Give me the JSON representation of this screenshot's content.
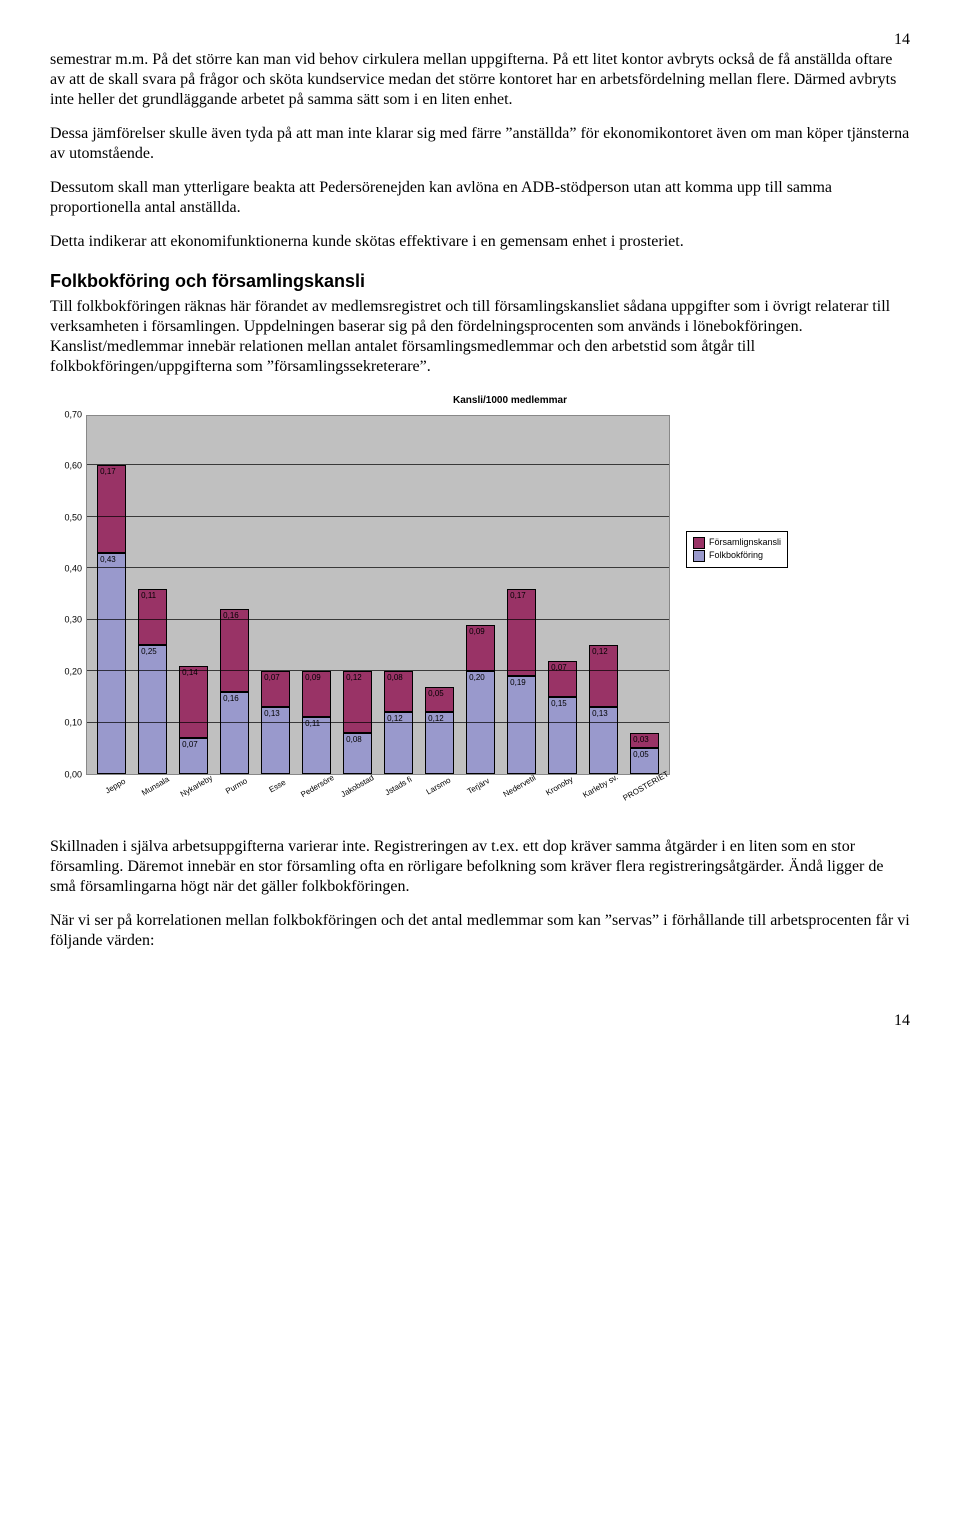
{
  "page_top": "14",
  "page_bottom": "14",
  "para1": "semestrar m.m. På det större kan man vid behov cirkulera mellan uppgifterna. På ett litet kontor avbryts också de få anställda oftare av att de skall svara på frågor och sköta kundservice medan det större kontoret har en arbetsfördelning mellan flere. Därmed avbryts inte heller det grundläggande arbetet på samma sätt som i en liten enhet.",
  "para2": "Dessa jämförelser skulle även tyda på att man inte klarar sig med färre ”anställda” för ekonomikontoret även om man köper tjänsterna av utomstående.",
  "para3": "Dessutom skall man ytterligare beakta att Pedersörenejden kan avlöna en ADB-stödperson utan att komma upp till samma proportionella antal anställda.",
  "para4": "Detta indikerar att ekonomifunktionerna kunde skötas effektivare i en gemensam enhet i prosteriet.",
  "heading": "Folkbokföring och församlingskansli",
  "para5": "Till folkbokföringen räknas här förandet av medlemsregistret och till församlingskansliet sådana uppgifter som i övrigt relaterar till verksamheten i församlingen. Uppdelningen baserar sig på den fördelningsprocenten som används i lönebokföringen. Kanslist/medlemmar innebär relationen mellan antalet församlingsmedlemmar och den arbetstid som åtgår till folkbokföringen/uppgifterna som ”församlingssekreterare”.",
  "para6": "Skillnaden i själva arbetsuppgifterna varierar inte. Registreringen av t.ex. ett dop kräver samma åtgärder i en liten som en stor församling. Däremot innebär en stor församling ofta en rörligare befolkning som kräver flera registreringsåtgärder. Ändå ligger de små församlingarna högt när det gäller folkbokföringen.",
  "para7": "När vi ser på korrelationen mellan folkbokföringen och det antal medlemmar som kan ”servas” i förhållande till arbetsprocenten får vi följande värden:",
  "chart": {
    "title": "Kansli/1000 medlemmar",
    "type": "stacked-bar",
    "ylim_max": 0.7,
    "ytick_step": 0.1,
    "yticks": [
      "0,00",
      "0,10",
      "0,20",
      "0,30",
      "0,40",
      "0,50",
      "0,60",
      "0,70"
    ],
    "plot_bg": "#c0c0c0",
    "grid_color": "#000000",
    "categories": [
      "Jeppo",
      "Munsala",
      "Nykarleby",
      "Purmo",
      "Esse",
      "Pedersöre",
      "Jakobstad",
      "Jstads fi",
      "Larsmo",
      "Terjärv",
      "Nedervetil",
      "Kronoby",
      "Karleby sv.",
      "PROSTERIET"
    ],
    "series": [
      {
        "name": "Folkbokföring",
        "color": "#9999cc"
      },
      {
        "name": "Församlignskansli",
        "color": "#993366"
      }
    ],
    "folkbokforing": [
      0.43,
      0.25,
      0.07,
      0.16,
      0.13,
      0.11,
      0.08,
      0.12,
      0.12,
      0.2,
      0.19,
      0.15,
      0.13,
      0.05
    ],
    "forsamlingskansli": [
      0.17,
      0.11,
      0.14,
      0.16,
      0.07,
      0.09,
      0.12,
      0.08,
      0.05,
      0.09,
      0.17,
      0.07,
      0.12,
      0.03
    ],
    "label_fontsize": 8,
    "axis_fontsize": 9
  }
}
